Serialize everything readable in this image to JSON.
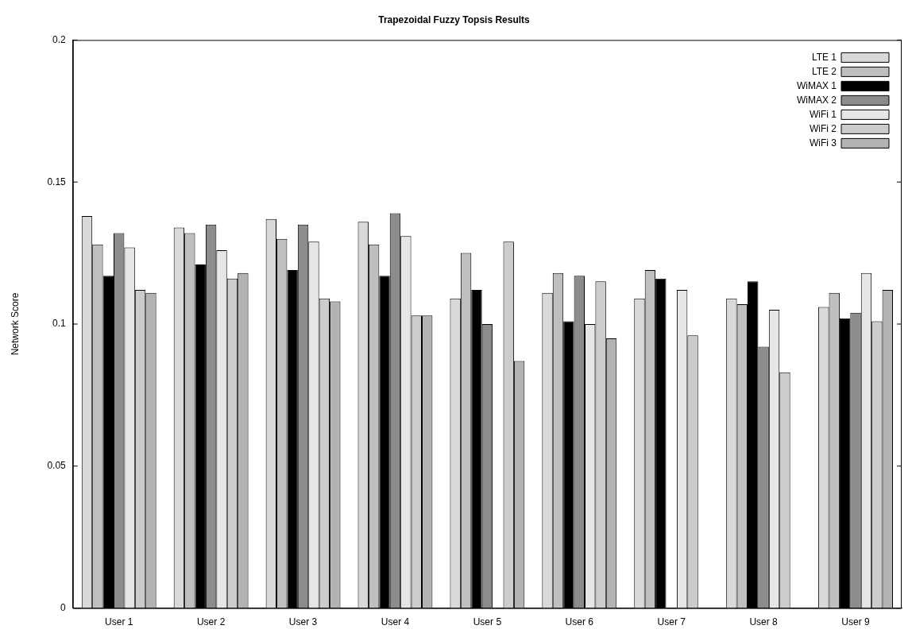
{
  "chart_data": {
    "type": "bar",
    "title": "Trapezoidal Fuzzy Topsis Results",
    "ylabel": "Network Score",
    "categories": [
      "User 1",
      "User 2",
      "User 3",
      "User 4",
      "User 5",
      "User 6",
      "User 7",
      "User 8",
      "User 9"
    ],
    "series": [
      {
        "name": "LTE 1",
        "color": "#d9d9d9",
        "values": [
          0.138,
          0.134,
          0.137,
          0.136,
          0.109,
          0.111,
          0.109,
          0.109,
          0.106
        ]
      },
      {
        "name": "LTE 2",
        "color": "#bfbfbf",
        "values": [
          0.128,
          0.132,
          0.13,
          0.128,
          0.125,
          0.118,
          0.119,
          0.107,
          0.111
        ]
      },
      {
        "name": "WiMAX 1",
        "color": "#000000",
        "values": [
          0.117,
          0.121,
          0.119,
          0.117,
          0.112,
          0.101,
          0.116,
          0.115,
          0.102
        ]
      },
      {
        "name": "WiMAX 2",
        "color": "#8c8c8c",
        "values": [
          0.132,
          0.135,
          0.135,
          0.139,
          0.1,
          0.117,
          0,
          0.092,
          0.104
        ]
      },
      {
        "name": "WiFi 1",
        "color": "#e6e6e6",
        "values": [
          0.127,
          0.126,
          0.129,
          0.131,
          0,
          0.1,
          0.112,
          0.105,
          0.118
        ]
      },
      {
        "name": "WiFi 2",
        "color": "#cccccc",
        "values": [
          0.112,
          0.116,
          0.109,
          0.103,
          0.129,
          0.115,
          0.096,
          0.083,
          0.101
        ]
      },
      {
        "name": "WiFi 3",
        "color": "#b3b3b3",
        "values": [
          0.111,
          0.118,
          0.108,
          0.103,
          0.087,
          0.095,
          0,
          0,
          0.112
        ]
      }
    ],
    "ylim": [
      0,
      0.2
    ],
    "yticks": [
      0,
      0.05,
      0.1,
      0.15,
      0.2
    ],
    "legend": "top right"
  }
}
